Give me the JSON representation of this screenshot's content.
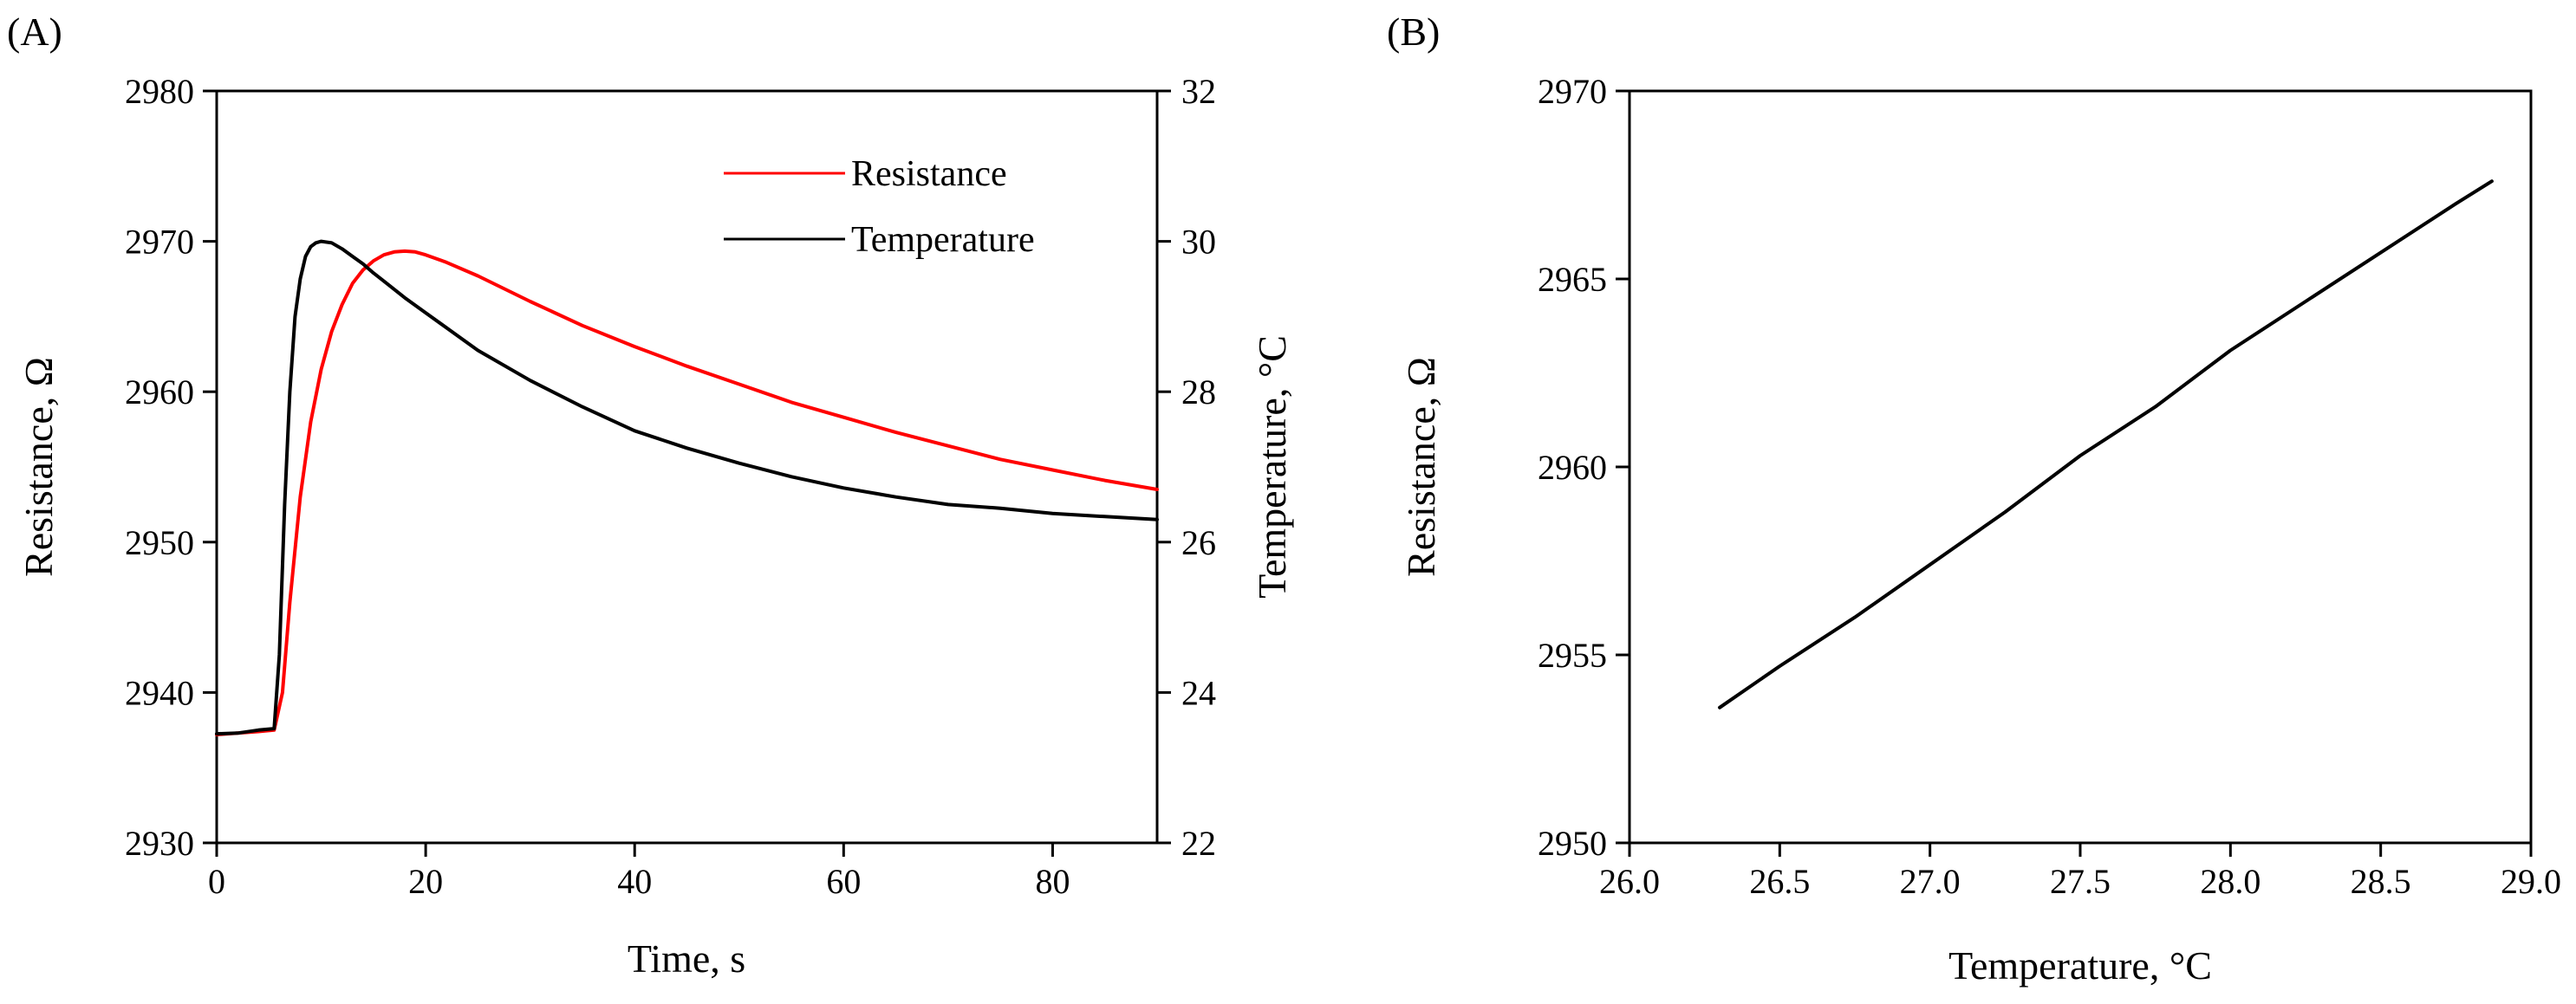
{
  "chart_data": [
    {
      "panel_label": "(A)",
      "type": "line",
      "xlabel": "Time, s",
      "ylabel": "Resistance, Ω",
      "y2label": "Temperature, °C",
      "xlim": [
        0,
        90
      ],
      "ylim": [
        2930,
        2980
      ],
      "y2lim": [
        22,
        32
      ],
      "xticks": [
        "0",
        "20",
        "40",
        "60",
        "80"
      ],
      "yticks": [
        "2930",
        "2940",
        "2950",
        "2960",
        "2970",
        "2980"
      ],
      "y2ticks": [
        "22",
        "24",
        "26",
        "28",
        "30",
        "32"
      ],
      "legend_position": "top-right",
      "series": [
        {
          "name": "Resistance",
          "axis": "left",
          "color": "#ff0000",
          "x": [
            0,
            2,
            4,
            5.5,
            6.3,
            7,
            8,
            9,
            10,
            11,
            12,
            13,
            14,
            15,
            16,
            17,
            18,
            19,
            20,
            22,
            25,
            30,
            35,
            40,
            45,
            50,
            55,
            60,
            65,
            70,
            75,
            80,
            85,
            90
          ],
          "y": [
            2937.2,
            2937.3,
            2937.4,
            2937.5,
            2940,
            2946,
            2953,
            2958,
            2961.5,
            2964,
            2965.8,
            2967.2,
            2968.1,
            2968.7,
            2969.1,
            2969.3,
            2969.35,
            2969.3,
            2969.1,
            2968.6,
            2967.7,
            2966.0,
            2964.4,
            2963.0,
            2961.7,
            2960.5,
            2959.3,
            2958.3,
            2957.3,
            2956.4,
            2955.5,
            2954.8,
            2954.1,
            2953.5
          ]
        },
        {
          "name": "Temperature",
          "axis": "right",
          "color": "#000000",
          "x": [
            0,
            2,
            4,
            5.5,
            6,
            6.5,
            7,
            7.5,
            8,
            8.5,
            9,
            9.5,
            10,
            11,
            12,
            13,
            14,
            15,
            16,
            18,
            20,
            25,
            30,
            35,
            40,
            45,
            50,
            55,
            60,
            65,
            70,
            75,
            80,
            85,
            90
          ],
          "y": [
            23.45,
            23.46,
            23.5,
            23.52,
            24.5,
            26.5,
            28.0,
            29.0,
            29.5,
            29.8,
            29.93,
            29.98,
            30.0,
            29.98,
            29.9,
            29.8,
            29.7,
            29.58,
            29.47,
            29.25,
            29.05,
            28.55,
            28.15,
            27.8,
            27.48,
            27.25,
            27.05,
            26.87,
            26.72,
            26.6,
            26.5,
            26.45,
            26.38,
            26.34,
            26.3
          ]
        }
      ]
    },
    {
      "panel_label": "(B)",
      "type": "line",
      "xlabel": "Temperature, °C",
      "ylabel": "Resistance, Ω",
      "xlim": [
        26.0,
        29.0
      ],
      "ylim": [
        2950,
        2970
      ],
      "xticks": [
        "26.0",
        "26.5",
        "27.0",
        "27.5",
        "28.0",
        "28.5",
        "29.0"
      ],
      "yticks": [
        "2950",
        "2955",
        "2960",
        "2965",
        "2970"
      ],
      "series": [
        {
          "color": "#000000",
          "x": [
            26.3,
            26.5,
            26.75,
            27.0,
            27.25,
            27.5,
            27.75,
            28.0,
            28.25,
            28.5,
            28.75,
            28.87
          ],
          "y": [
            2953.6,
            2954.7,
            2956.0,
            2957.4,
            2958.8,
            2960.3,
            2961.6,
            2963.1,
            2964.4,
            2965.7,
            2967.0,
            2967.6
          ]
        }
      ]
    }
  ]
}
